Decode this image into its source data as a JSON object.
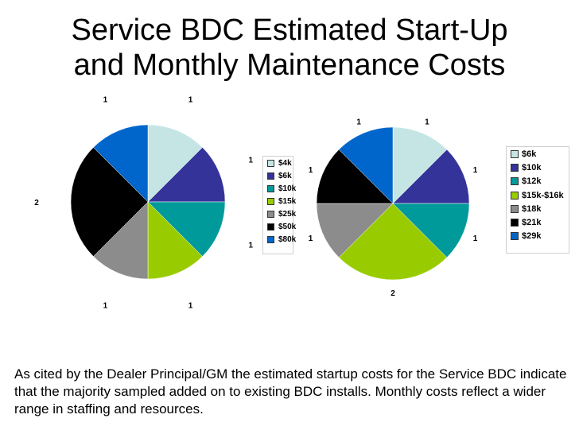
{
  "title_line1": "Service BDC Estimated Start-Up",
  "title_line2": "and Monthly Maintenance Costs",
  "caption": "As cited by the Dealer Principal/GM the estimated startup costs for the Service BDC indicate that the majority sampled added on to existing BDC installs.  Monthly costs reflect a wider range in staffing and resources.",
  "chart_data": [
    {
      "type": "pie",
      "title": "",
      "categories": [
        "$4k",
        "$6k",
        "$10k",
        "$15k",
        "$25k",
        "$50k",
        "$80k"
      ],
      "values": [
        1,
        1,
        1,
        1,
        1,
        2,
        1
      ],
      "colors": [
        "#c5e5e5",
        "#33339a",
        "#009a9a",
        "#99cc00",
        "#8c8c8c",
        "#000000",
        "#0066cc"
      ],
      "legend": "right"
    },
    {
      "type": "pie",
      "title": "",
      "categories": [
        "$6k",
        "$10k",
        "$12k",
        "$15k-$16k",
        "$18k",
        "$21k",
        "$29k"
      ],
      "values": [
        1,
        1,
        1,
        2,
        1,
        1,
        1
      ],
      "colors": [
        "#c5e5e5",
        "#33339a",
        "#009a9a",
        "#99cc00",
        "#8c8c8c",
        "#000000",
        "#0066cc"
      ],
      "legend": "right"
    }
  ]
}
